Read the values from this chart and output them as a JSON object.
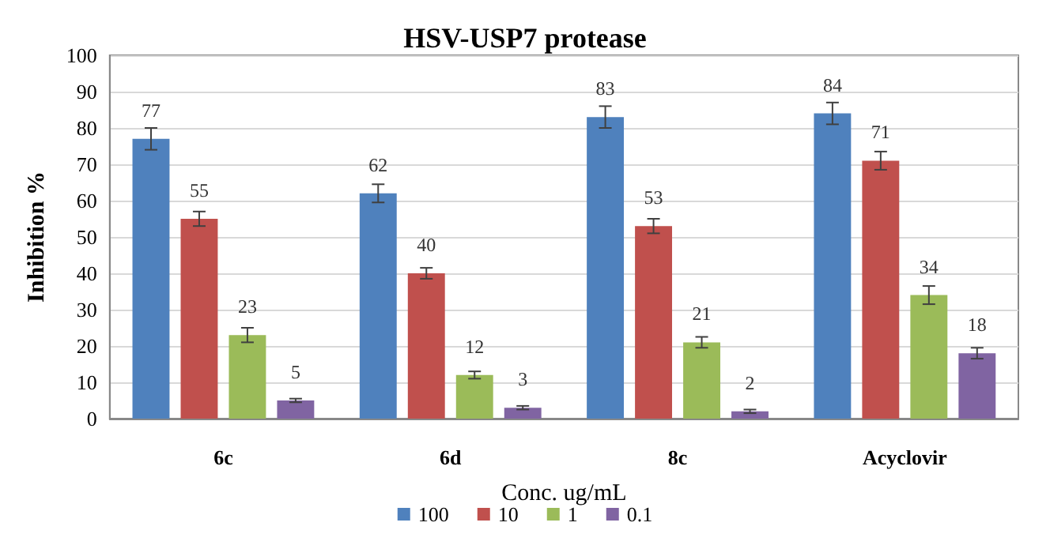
{
  "chart_data": {
    "type": "bar",
    "title": "HSV-USP7 protease",
    "xlabel": "Conc. ug/mL",
    "ylabel": "Inhibition %",
    "categories": [
      "6c",
      "6d",
      "8c",
      "Acyclovir"
    ],
    "series": [
      {
        "name": "100",
        "color": "#4f81bd",
        "values": [
          77,
          62,
          83,
          84
        ],
        "errors": [
          3,
          2.5,
          3,
          3
        ]
      },
      {
        "name": "10",
        "color": "#c0504d",
        "values": [
          55,
          40,
          53,
          71
        ],
        "errors": [
          2,
          1.5,
          2,
          2.5
        ]
      },
      {
        "name": "1",
        "color": "#9bbb59",
        "values": [
          23,
          12,
          21,
          34
        ],
        "errors": [
          2,
          1,
          1.5,
          2.5
        ]
      },
      {
        "name": "0.1",
        "color": "#8064a2",
        "values": [
          5,
          3,
          2,
          18
        ],
        "errors": [
          0.5,
          0.5,
          0.5,
          1.5
        ]
      }
    ],
    "ylim": [
      0,
      100
    ],
    "yticks": [
      0,
      10,
      20,
      30,
      40,
      50,
      60,
      70,
      80,
      90,
      100
    ],
    "grid": "y",
    "legend": "bottom",
    "data_labels": true
  }
}
